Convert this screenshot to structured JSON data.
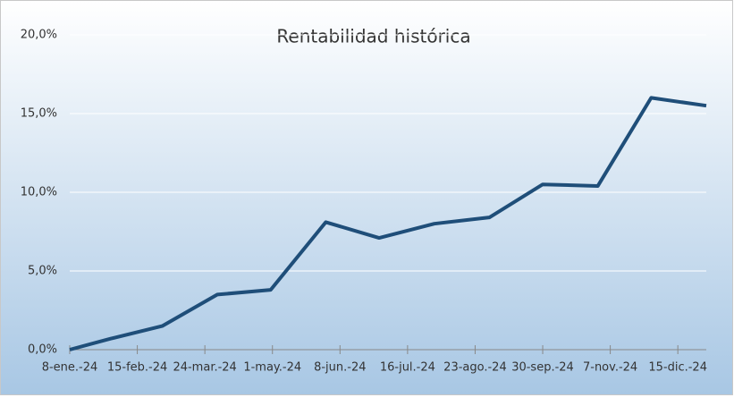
{
  "chart_data": {
    "type": "line",
    "title": "Rentabilidad histórica",
    "x": [
      "2024-01-08",
      "2024-01-31",
      "2024-02-29",
      "2024-03-31",
      "2024-04-30",
      "2024-05-31",
      "2024-06-30",
      "2024-07-31",
      "2024-08-31",
      "2024-09-30",
      "2024-10-31",
      "2024-11-30",
      "2024-12-31"
    ],
    "series": [
      {
        "name": "Rentabilidad",
        "color": "#1f4e79",
        "values": [
          0,
          0.7,
          1.5,
          3.5,
          3.8,
          8.1,
          7.1,
          8.0,
          8.4,
          10.5,
          10.4,
          16.0,
          15.5
        ]
      }
    ],
    "xlim": [
      "2024-01-08",
      "2024-12-31"
    ],
    "xticks": [
      {
        "value": "2024-01-08",
        "label": "8-ene.-24"
      },
      {
        "value": "2024-02-15",
        "label": "15-feb.-24"
      },
      {
        "value": "2024-03-24",
        "label": "24-mar.-24"
      },
      {
        "value": "2024-05-01",
        "label": "1-may.-24"
      },
      {
        "value": "2024-06-08",
        "label": "8-jun.-24"
      },
      {
        "value": "2024-07-16",
        "label": "16-jul.-24"
      },
      {
        "value": "2024-08-23",
        "label": "23-ago.-24"
      },
      {
        "value": "2024-09-30",
        "label": "30-sep.-24"
      },
      {
        "value": "2024-11-07",
        "label": "7-nov.-24"
      },
      {
        "value": "2024-12-15",
        "label": "15-dic.-24"
      }
    ],
    "ylim": [
      0,
      20
    ],
    "yticks": [
      {
        "value": 0,
        "label": "0,0%"
      },
      {
        "value": 5,
        "label": "5,0%"
      },
      {
        "value": 10,
        "label": "10,0%"
      },
      {
        "value": 15,
        "label": "15,0%"
      },
      {
        "value": 20,
        "label": "20,0%"
      }
    ],
    "grid": true
  }
}
